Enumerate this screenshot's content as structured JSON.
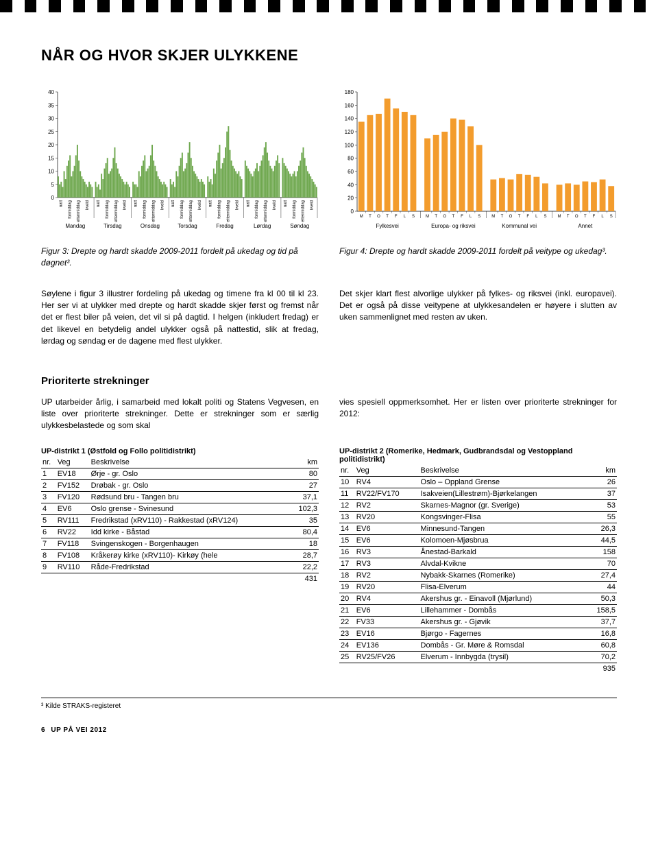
{
  "heading": "NÅR OG HVOR SKJER ULYKKENE",
  "chart_left": {
    "type": "bar",
    "bar_color": "#6fa84f",
    "axis_color": "#000000",
    "background": "#ffffff",
    "ymax": 40,
    "ytick_step": 5,
    "yticks": [
      0,
      5,
      10,
      15,
      20,
      25,
      30,
      35,
      40
    ],
    "day_labels": [
      "Mandag",
      "Tirsdag",
      "Onsdag",
      "Torsdag",
      "Fredag",
      "Lørdag",
      "Søndag"
    ],
    "slot_labels": [
      "natt",
      "formiddag",
      "ettermiddag",
      "kveld"
    ],
    "values": [
      8,
      5,
      6,
      4,
      10,
      7,
      12,
      14,
      16,
      8,
      10,
      12,
      16,
      20,
      14,
      10,
      8,
      7,
      6,
      5,
      4,
      6,
      5,
      4,
      6,
      4,
      5,
      3,
      9,
      7,
      11,
      13,
      15,
      9,
      10,
      11,
      15,
      19,
      13,
      11,
      9,
      8,
      7,
      6,
      5,
      6,
      5,
      4,
      6,
      5,
      5,
      4,
      10,
      8,
      12,
      14,
      16,
      10,
      11,
      12,
      16,
      20,
      14,
      12,
      10,
      8,
      7,
      6,
      5,
      6,
      5,
      4,
      7,
      5,
      6,
      4,
      10,
      8,
      12,
      15,
      17,
      10,
      11,
      13,
      17,
      21,
      15,
      12,
      10,
      9,
      8,
      7,
      6,
      7,
      6,
      5,
      8,
      6,
      7,
      5,
      11,
      9,
      14,
      17,
      20,
      11,
      13,
      15,
      19,
      25,
      27,
      18,
      14,
      12,
      11,
      10,
      9,
      10,
      8,
      7,
      14,
      12,
      11,
      10,
      9,
      8,
      10,
      11,
      13,
      10,
      12,
      14,
      16,
      19,
      21,
      17,
      14,
      12,
      11,
      10,
      12,
      14,
      16,
      13,
      15,
      13,
      12,
      11,
      10,
      9,
      8,
      9,
      10,
      8,
      10,
      12,
      14,
      17,
      19,
      15,
      12,
      10,
      9,
      8,
      7,
      6,
      5,
      4
    ]
  },
  "chart_right": {
    "type": "bar",
    "bar_color": "#f39c2d",
    "axis_color": "#000000",
    "background": "#ffffff",
    "ymax": 180,
    "ytick_step": 20,
    "yticks": [
      0,
      20,
      40,
      60,
      80,
      100,
      120,
      140,
      160,
      180
    ],
    "day_letters": [
      "M",
      "T",
      "O",
      "T",
      "F",
      "L",
      "S"
    ],
    "group_labels": [
      "Fylkesvei",
      "Europa- og riksvei",
      "Kommunal vei",
      "Annet"
    ],
    "values": [
      135,
      145,
      147,
      170,
      155,
      150,
      145,
      110,
      115,
      120,
      140,
      138,
      128,
      100,
      48,
      50,
      48,
      56,
      55,
      52,
      42,
      40,
      42,
      40,
      45,
      44,
      48,
      38
    ]
  },
  "caption_left": "Figur 3:  Drepte og hardt skadde 2009-2011 fordelt på ukedag og tid på døgnet³.",
  "caption_right": "Figur 4:  Drepte og hardt skadde 2009-2011 fordelt på veitype og ukedag³.",
  "body_left": "Søylene i figur 3 illustrer fordeling på ukedag og timene fra kl 00 til kl 23. Her ser vi at ulykker med drepte og hardt skadde skjer først og fremst når det er flest biler på veien, det vil si på dagtid. I helgen (inkludert fredag) er det likevel en betydelig andel ulykker også på nattestid, slik at fredag, lørdag og søndag er de dagene med flest ulykker.",
  "body_right": "Det skjer klart flest alvorlige ulykker på fylkes- og riksvei (inkl. europavei). Det er også på disse veitypene at ulykkesandelen er høyere i slutten av uken sammenlignet med resten av uken.",
  "section2_title": "Prioriterte strekninger",
  "section2_left_intro": "UP utarbeider årlig, i samarbeid med lokalt politi og Statens Vegvesen, en liste over prioriterte strekninger. Dette er strekninger som er særlig ulykkesbelastede og som skal",
  "section2_right_intro": "vies spesiell oppmerksomhet. Her er listen over prioriterte strekninger for 2012:",
  "table_left": {
    "title": "UP-distrikt 1 (Østfold og Follo politidistrikt)",
    "columns": [
      "nr.",
      "Veg",
      "Beskrivelse",
      "km"
    ],
    "rows": [
      [
        "1",
        "EV18",
        "Ørje - gr. Oslo",
        "80"
      ],
      [
        "2",
        "FV152",
        "Drøbak - gr. Oslo",
        "27"
      ],
      [
        "3",
        "FV120",
        "Rødsund bru - Tangen bru",
        "37,1"
      ],
      [
        "4",
        "EV6",
        "Oslo grense - Svinesund",
        "102,3"
      ],
      [
        "5",
        "RV111",
        "Fredrikstad (xRV110) - Rakkestad (xRV124)",
        "35"
      ],
      [
        "6",
        "RV22",
        "Idd kirke - Båstad",
        "80,4"
      ],
      [
        "7",
        "FV118",
        "Svingenskogen - Borgenhaugen",
        "18"
      ],
      [
        "8",
        "FV108",
        "Kråkerøy kirke (xRV110)- Kirkøy (hele",
        "28,7"
      ],
      [
        "9",
        "RV110",
        "Råde-Fredrikstad",
        "22,2"
      ]
    ],
    "total": "431"
  },
  "table_right": {
    "title": "UP-distrikt 2 (Romerike, Hedmark, Gudbrandsdal og Vestoppland politidistrikt)",
    "columns": [
      "nr.",
      "Veg",
      "Beskrivelse",
      "km"
    ],
    "rows": [
      [
        "10",
        "RV4",
        "Oslo – Oppland Grense",
        "26"
      ],
      [
        "11",
        "RV22/FV170",
        "Isakveien(Lillestrøm)-Bjørkelangen",
        "37"
      ],
      [
        "12",
        "RV2",
        "Skarnes-Magnor (gr. Sverige)",
        "53"
      ],
      [
        "13",
        "RV20",
        "Kongsvinger-Flisa",
        "55"
      ],
      [
        "14",
        "EV6",
        "Minnesund-Tangen",
        "26,3"
      ],
      [
        "15",
        "EV6",
        "Kolomoen-Mjøsbrua",
        "44,5"
      ],
      [
        "16",
        "RV3",
        "Ånestad-Barkald",
        "158"
      ],
      [
        "17",
        "RV3",
        "Alvdal-Kvikne",
        "70"
      ],
      [
        "18",
        "RV2",
        "Nybakk-Skarnes  (Romerike)",
        "27,4"
      ],
      [
        "19",
        "RV20",
        "Flisa-Elverum",
        "44"
      ],
      [
        "20",
        "RV4",
        "Akershus gr. - Einavoll (Mjørlund)",
        "50,3"
      ],
      [
        "21",
        "EV6",
        "Lillehammer - Dombås",
        "158,5"
      ],
      [
        "22",
        "FV33",
        "Akershus gr. - Gjøvik",
        "37,7"
      ],
      [
        "23",
        "EV16",
        "Bjørgo - Fagernes",
        "16,8"
      ],
      [
        "24",
        "EV136",
        "Dombås - Gr. Møre & Romsdal",
        "60,8"
      ],
      [
        "25",
        "RV25/FV26",
        "Elverum - Innbygda (trysil)",
        "70,2"
      ]
    ],
    "total": "935"
  },
  "footnote": "³  Kilde STRAKS-registeret",
  "footer_page": "6",
  "footer_title": "UP PÅ VEI 2012"
}
